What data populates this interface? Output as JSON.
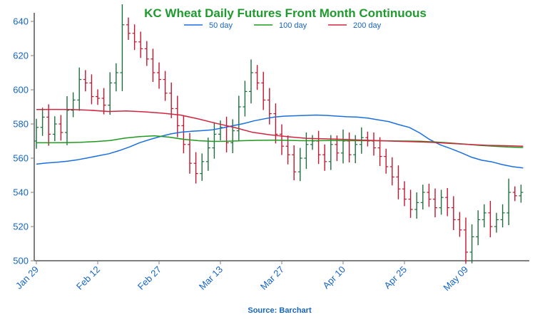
{
  "chart_data": {
    "type": "ohlc",
    "title": "KC Wheat Daily Futures Front Month Continuous",
    "source": "Source: Barchart",
    "ylim": [
      500,
      645
    ],
    "y_ticks": [
      500,
      520,
      540,
      560,
      580,
      600,
      620,
      640
    ],
    "x_tick_labels": [
      "Jan 29",
      "Feb 12",
      "Feb 27",
      "Mar 13",
      "Mar 27",
      "Apr 10",
      "Apr 25",
      "May 09"
    ],
    "x_tick_positions": [
      0,
      10,
      20,
      30,
      40,
      50,
      60,
      70
    ],
    "n_bars": 80,
    "up_color": "#1e6f3e",
    "down_color": "#c0172f",
    "closes": [
      578,
      584,
      574,
      580,
      575,
      588,
      594,
      606,
      604,
      596,
      595,
      591,
      604,
      610,
      638,
      633,
      628,
      624,
      618,
      610,
      606,
      598,
      589,
      579,
      568,
      557,
      551,
      558,
      566,
      574,
      578,
      569,
      576,
      590,
      599,
      610,
      604,
      594,
      586,
      574,
      567,
      562,
      552,
      560,
      568,
      570,
      562,
      558,
      568,
      563,
      570,
      562,
      568,
      572,
      570,
      566,
      561,
      555,
      549,
      542,
      536,
      530,
      534,
      540,
      536,
      531,
      537,
      531,
      524,
      518,
      505,
      514,
      524,
      528,
      520,
      524,
      528,
      540,
      538,
      540
    ],
    "series": [
      {
        "name": "50 day",
        "color": "#1a6fe0",
        "values": [
          556.5,
          557.2,
          557.6,
          558.2,
          559.1,
          560.2,
          561.4,
          562.6,
          564.4,
          566.6,
          569.1,
          571.0,
          572.7,
          574.2,
          575.2,
          575.7,
          576.1,
          576.6,
          577.7,
          579.0,
          580.2,
          581.8,
          583.0,
          584.1,
          584.6,
          584.8,
          585.0,
          585.2,
          585.0,
          584.6,
          584.2,
          584.0,
          583.4,
          582.4,
          581.4,
          579.6,
          578.0,
          574.8,
          570.8,
          567.8,
          565.6,
          563.2,
          560.6,
          558.8,
          557.8,
          556.2,
          555.0,
          554.3
        ]
      },
      {
        "name": "100 day",
        "color": "#1e9a1e",
        "values": [
          569.0,
          569.0,
          569.1,
          569.3,
          569.7,
          570.3,
          571.7,
          572.6,
          573.1,
          572.3,
          571.0,
          570.2,
          569.8,
          569.9,
          570.2,
          570.4,
          570.5,
          570.4,
          570.2,
          570.2,
          570.3,
          570.2,
          570.2,
          570.2,
          570.1,
          570.0,
          569.9,
          569.5,
          568.9,
          568.2,
          567.5,
          567.0,
          566.5,
          566.2
        ]
      },
      {
        "name": "200 day",
        "color": "#d0243f",
        "values": [
          588.4,
          588.5,
          588.4,
          588.0,
          587.3,
          587.6,
          587.1,
          586.3,
          585.2,
          582.9,
          580.3,
          577.9,
          575.1,
          573.6,
          572.5,
          571.6,
          571.3,
          571.0,
          570.6,
          570.2,
          569.9,
          569.6,
          569.2,
          568.6,
          568.0,
          567.5,
          567.3,
          567.0
        ]
      }
    ]
  }
}
